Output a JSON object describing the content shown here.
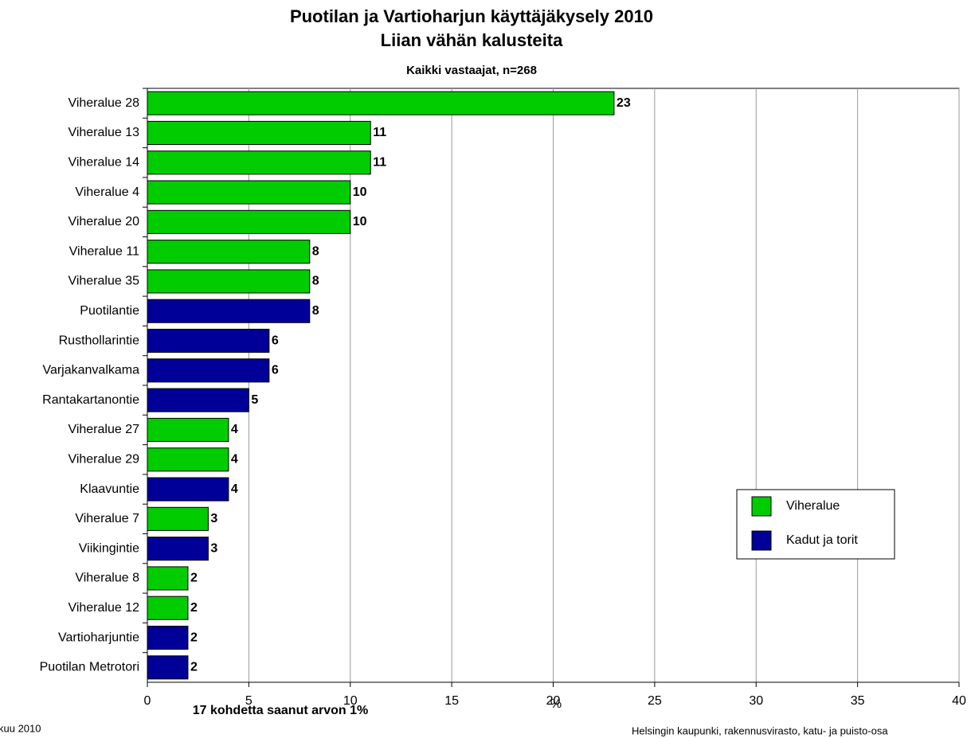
{
  "chart_data": {
    "type": "bar",
    "orientation": "horizontal",
    "title": "Puotilan ja Vartioharjun käyttäjäkysely 2010",
    "title2": "Liian vähän kalusteita",
    "subtitle": "Kaikki vastaajat, n=268",
    "xlabel": "%",
    "annotation": "17 kohdetta saanut arvon 1%",
    "footer_left": "kuu 2010",
    "footer_right": "Helsingin kaupunki, rakennusvirasto, katu- ja puisto-osa",
    "categories": [
      "Viheralue 28",
      "Viheralue 13",
      "Viheralue 14",
      "Viheralue 4",
      "Viheralue 20",
      "Viheralue 11",
      "Viheralue 35",
      "Puotilantie",
      "Rusthollarintie",
      "Varjakanvalkama",
      "Rantakartanontie",
      "Viheralue 27",
      "Viheralue 29",
      "Klaavuntie",
      "Viheralue 7",
      "Viikingintie",
      "Viheralue 8",
      "Viheralue 12",
      "Vartioharjuntie",
      "Puotilan Metrotori"
    ],
    "series": [
      {
        "name": "Viheralue",
        "color": "#00cc00",
        "values": [
          23,
          11,
          11,
          10,
          10,
          8,
          8,
          null,
          null,
          null,
          null,
          4,
          4,
          null,
          3,
          null,
          2,
          2,
          null,
          null
        ]
      },
      {
        "name": "Kadut ja torit",
        "color": "#000099",
        "values": [
          null,
          null,
          null,
          null,
          null,
          null,
          null,
          8,
          6,
          6,
          5,
          null,
          null,
          4,
          null,
          3,
          null,
          null,
          2,
          2
        ]
      }
    ],
    "xlim": [
      0,
      40
    ],
    "xticks": [
      0,
      5,
      10,
      15,
      20,
      25,
      30,
      35,
      40
    ],
    "grid": true,
    "legend": "right"
  }
}
